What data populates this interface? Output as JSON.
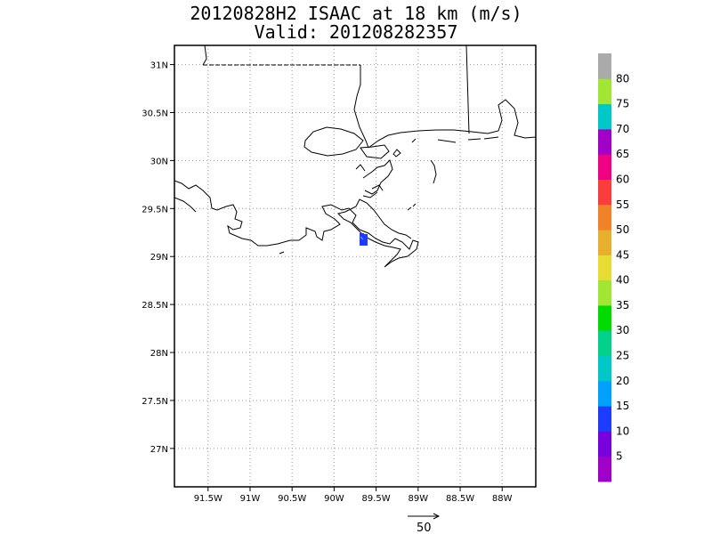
{
  "title": {
    "line1": "20120828H2 ISAAC at 18 km (m/s)",
    "line2": "Valid: 201208282357"
  },
  "map": {
    "lat_ticks": [
      "31N",
      "30.5N",
      "30N",
      "29.5N",
      "29N",
      "28.5N",
      "28N",
      "27.5N",
      "27N"
    ],
    "lon_ticks": [
      "91.5W",
      "91W",
      "90.5W",
      "90W",
      "89.5W",
      "89W",
      "88.5W",
      "88W"
    ],
    "lat_range": [
      26.6,
      31.2
    ],
    "lon_range": [
      -91.9,
      -87.6
    ],
    "grid": "dotted"
  },
  "colorbar": {
    "labels": [
      "5",
      "10",
      "15",
      "20",
      "25",
      "30",
      "35",
      "40",
      "45",
      "50",
      "55",
      "60",
      "65",
      "70",
      "75",
      "80"
    ],
    "colors": [
      "#a000c8",
      "#7800dc",
      "#1e3cff",
      "#00a0ff",
      "#00c8c8",
      "#00d28c",
      "#00dc00",
      "#a0e632",
      "#e6dc32",
      "#e6af2d",
      "#f08228",
      "#fa3c3c",
      "#f00082",
      "#a000c8",
      "#00c8c8",
      "#a0e632",
      "#aaaaaa"
    ]
  },
  "wind_patch": {
    "color": "#1e3cff",
    "lat": 29.18,
    "lon": -89.72
  },
  "reference_vector": {
    "label": "50"
  }
}
